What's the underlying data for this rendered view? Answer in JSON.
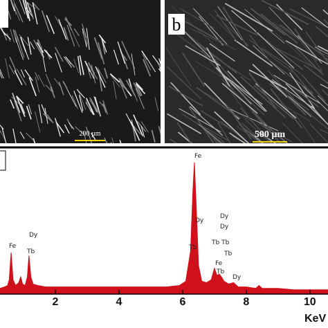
{
  "panels": {
    "a": {
      "scale_bar": "200 µm"
    },
    "b": {
      "label": "b",
      "scale_bar": "500 µm"
    }
  },
  "chart_data": {
    "type": "area",
    "x_label": "KeV",
    "color": "#d0101a",
    "x": [
      0.26,
      0.4,
      0.5,
      0.55,
      0.61,
      0.67,
      0.75,
      0.85,
      0.91,
      0.97,
      1.05,
      1.12,
      1.17,
      1.23,
      1.3,
      1.45,
      1.7,
      2,
      2.5,
      3,
      3.5,
      4,
      4.5,
      5,
      5.5,
      5.9,
      6.1,
      6.25,
      6.32,
      6.37,
      6.43,
      6.5,
      6.6,
      6.75,
      6.9,
      7.0,
      7.08,
      7.15,
      7.22,
      7.3,
      7.45,
      7.6,
      7.75,
      8,
      8.3,
      8.4,
      8.5,
      9,
      9.5,
      10,
      10.57
    ],
    "values": [
      4,
      5,
      6,
      10,
      29,
      10,
      6,
      8,
      12,
      7,
      6,
      12,
      27,
      12,
      7,
      6,
      5,
      5,
      5,
      5,
      5,
      5,
      5,
      5,
      5,
      6,
      9,
      30,
      70,
      92,
      60,
      20,
      9,
      8,
      10,
      18,
      13,
      14,
      12,
      9,
      7,
      8,
      5,
      5,
      4,
      6,
      4,
      4,
      3,
      3,
      3
    ],
    "xlim": [
      0.26,
      10.57
    ],
    "ylim": [
      0,
      100
    ],
    "xticks": [
      2,
      4,
      6,
      8,
      10
    ],
    "annotations": [
      "Fe",
      "Dy",
      "Tb",
      "Fe",
      "Dy",
      "Tb",
      "Dy",
      "Dy",
      "Tb Tb",
      "Tb",
      "Fe",
      "Tb",
      "Dy"
    ]
  }
}
